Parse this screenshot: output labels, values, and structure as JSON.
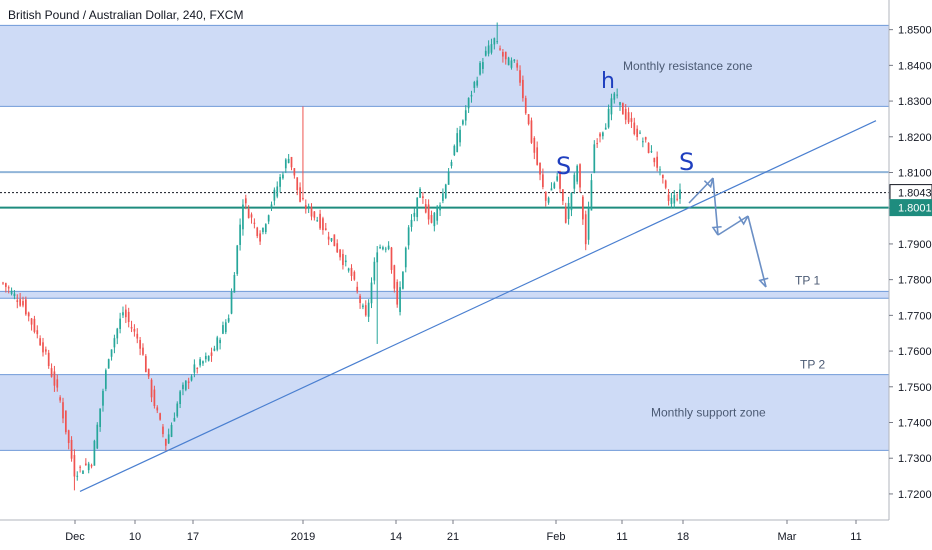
{
  "chart_data": {
    "type": "candlestick",
    "title": "British Pound / Australian Dollar, 240, FXCM",
    "ylim": [
      1.7155,
      1.8555
    ],
    "y_ticks": [
      "1.85000",
      "1.84000",
      "1.83000",
      "1.82000",
      "1.81000",
      "1.80000",
      "1.79000",
      "1.78000",
      "1.77000",
      "1.76000",
      "1.75000",
      "1.74000",
      "1.73000",
      "1.72000"
    ],
    "price_labels": [
      {
        "value": 1.80437,
        "label": "1.80437",
        "color": "#131722",
        "bg": "#ffffff",
        "border": "#131722"
      },
      {
        "value": 1.80017,
        "label": "1.80017",
        "color": "#ffffff",
        "bg": "#1e8c7e",
        "border": "#1e8c7e"
      }
    ],
    "x_ticks": [
      "Dec",
      "10",
      "17",
      "2019",
      "14",
      "21",
      "Feb",
      "11",
      "18",
      "Mar",
      "11"
    ],
    "zones": [
      {
        "label": "Monthly resistance zone",
        "y_top": 1.8512,
        "y_bottom": 1.8285
      },
      {
        "label": "TP 1",
        "y_top": 1.7767,
        "y_bottom": 1.7748
      },
      {
        "label": "Monthly support zone",
        "y_top": 1.7534,
        "y_bottom": 1.7322
      }
    ],
    "level_lines": [
      {
        "value": 1.8101,
        "color": "#90b4d8"
      },
      {
        "value": 1.80017,
        "color": "#1e8c7e"
      },
      {
        "value": 1.80437,
        "color": "#131722",
        "dotted": true
      }
    ],
    "extra_labels": [
      {
        "text": "TP 2",
        "value": 1.7546
      }
    ],
    "pattern_labels": [
      "S",
      "h",
      "S"
    ],
    "colors": {
      "up": "#26a69a",
      "down": "#ef5350",
      "zone": "#c5d5f5",
      "zone_border": "#6f9ad8",
      "trendline": "#4a7fd0",
      "arrow": "#6b8fc5"
    },
    "anchors": [
      [
        0,
        1.779
      ],
      [
        7,
        1.773
      ],
      [
        14,
        1.761
      ],
      [
        20,
        1.746
      ],
      [
        25,
        1.726
      ],
      [
        31,
        1.729
      ],
      [
        37,
        1.759
      ],
      [
        42,
        1.771
      ],
      [
        48,
        1.762
      ],
      [
        52,
        1.748
      ],
      [
        57,
        1.734
      ],
      [
        62,
        1.748
      ],
      [
        67,
        1.755
      ],
      [
        73,
        1.759
      ],
      [
        79,
        1.77
      ],
      [
        84,
        1.802
      ],
      [
        90,
        1.792
      ],
      [
        95,
        1.804
      ],
      [
        100,
        1.815
      ],
      [
        104,
        1.802
      ],
      [
        110,
        1.797
      ],
      [
        116,
        1.79
      ],
      [
        122,
        1.781
      ],
      [
        127,
        1.769
      ],
      [
        131,
        1.789
      ],
      [
        135,
        1.79
      ],
      [
        138,
        1.772
      ],
      [
        142,
        1.794
      ],
      [
        146,
        1.804
      ],
      [
        150,
        1.796
      ],
      [
        154,
        1.804
      ],
      [
        158,
        1.817
      ],
      [
        163,
        1.83
      ],
      [
        168,
        1.842
      ],
      [
        172,
        1.847
      ],
      [
        176,
        1.841
      ],
      [
        180,
        1.84
      ],
      [
        185,
        1.819
      ],
      [
        190,
        1.802
      ],
      [
        194,
        1.809
      ],
      [
        197,
        1.797
      ],
      [
        201,
        1.812
      ],
      [
        204,
        1.79
      ],
      [
        207,
        1.818
      ],
      [
        211,
        1.824
      ],
      [
        214,
        1.832
      ],
      [
        217,
        1.827
      ],
      [
        221,
        1.822
      ],
      [
        225,
        1.818
      ],
      [
        229,
        1.812
      ],
      [
        233,
        1.802
      ],
      [
        237,
        1.804
      ]
    ],
    "sparks": [
      [
        25,
        1.721,
        "low"
      ],
      [
        105,
        1.8285,
        "high"
      ],
      [
        173,
        1.852,
        "high"
      ],
      [
        131,
        1.762,
        "low"
      ]
    ],
    "arrows": [
      [
        [
          689,
          203
        ],
        [
          713,
          178
        ]
      ],
      [
        [
          713,
          178
        ],
        [
          718,
          235
        ]
      ],
      [
        [
          718,
          235
        ],
        [
          748,
          216
        ]
      ],
      [
        [
          748,
          216
        ],
        [
          766,
          287
        ]
      ]
    ]
  }
}
